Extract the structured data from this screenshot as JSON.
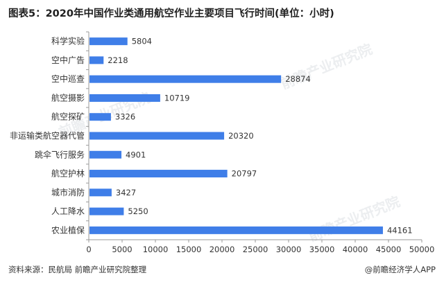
{
  "title": "图表5：2020年中国作业类通用航空作业主要项目飞行时间(单位：小时)",
  "footer": {
    "source": "资料来源：民航局 前瞻产业研究院整理",
    "brand": "@前瞻经济学人APP"
  },
  "watermark": {
    "text": "前瞻产业研究院"
  },
  "colors": {
    "bar": "#3f7ee8",
    "axis": "#999999",
    "text": "#333333"
  },
  "chart_data": {
    "type": "bar",
    "orientation": "horizontal",
    "categories": [
      "科学实验",
      "空中广告",
      "空中巡查",
      "航空摄影",
      "航空探矿",
      "非运输类航空器代管",
      "跳伞飞行服务",
      "航空护林",
      "城市消防",
      "人工降水",
      "农业植保"
    ],
    "values": [
      5804,
      2218,
      28874,
      10719,
      3326,
      20320,
      4901,
      20797,
      3427,
      5250,
      44161
    ],
    "xlim": [
      0,
      50000
    ],
    "xticks": [
      0,
      5000,
      10000,
      15000,
      20000,
      25000,
      30000,
      35000,
      40000,
      45000,
      50000
    ],
    "data_labels": true,
    "grid": false,
    "legend": "none"
  }
}
